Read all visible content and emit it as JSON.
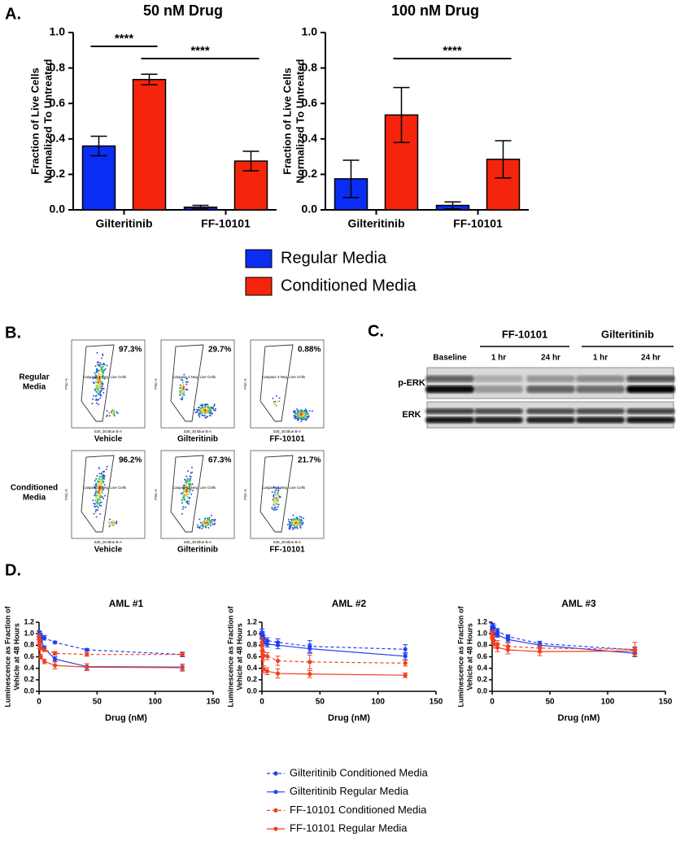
{
  "panel_labels": [
    "A.",
    "B.",
    "C.",
    "D."
  ],
  "chart_data": [
    {
      "type": "bar",
      "title": "50 nM Drug",
      "ylabel": [
        "Fraction of Live Cells",
        "Normalized To Untreated"
      ],
      "categories": [
        "Gilteritinib",
        "FF-10101"
      ],
      "series": [
        {
          "name": "Regular Media",
          "color": "#0b2cf2",
          "values": [
            0.36,
            0.015
          ],
          "errors": [
            0.055,
            0.01
          ]
        },
        {
          "name": "Conditioned Media",
          "color": "#f5240c",
          "values": [
            0.735,
            0.275
          ],
          "errors": [
            0.03,
            0.055
          ]
        }
      ],
      "ylim": [
        0,
        1
      ],
      "yticks": [
        {
          "value": 0,
          "label": "0.0"
        },
        0.2,
        0.4,
        0.6,
        0.8,
        {
          "value": 1,
          "label": "1.0"
        }
      ],
      "annotations": [
        "****",
        "****"
      ]
    },
    {
      "type": "bar",
      "title": "100 nM Drug",
      "ylabel": [
        "Fraction of Live Cells",
        "Normalized To Untreated"
      ],
      "categories": [
        "Gilteritinib",
        "FF-10101"
      ],
      "series": [
        {
          "color": "#0b2cf2",
          "values": [
            0.175,
            0.025
          ],
          "errors": [
            0.105,
            0.02
          ]
        },
        {
          "color": "#f5240c",
          "values": [
            0.535,
            0.285
          ],
          "errors": [
            0.155,
            0.105
          ]
        }
      ],
      "ylim": [
        0,
        1
      ],
      "yticks": [
        {
          "value": 0,
          "label": "0.0"
        },
        0.2,
        0.4,
        0.6,
        0.8,
        {
          "value": 1,
          "label": "1.0"
        }
      ],
      "annotations": [
        "****"
      ]
    },
    {
      "type": "line",
      "title": "AML #1",
      "xlabel": "Drug (nM)",
      "ylabel": [
        "Luminescence as Fraction of",
        "Vehicle at 48 Hours"
      ],
      "x": [
        0,
        0.5,
        1.5,
        4.6,
        13.7,
        41.2,
        123.5
      ],
      "series": [
        {
          "name": "Gilteritinib Conditioned Media",
          "color": "#1f3ff0",
          "dash": true,
          "values": [
            1.0,
            1.0,
            0.97,
            0.93,
            0.85,
            0.72,
            0.64
          ],
          "errors": [
            0.05,
            0.04,
            0.04,
            0.04,
            0.02,
            0.02,
            0.04
          ]
        },
        {
          "name": "Gilteritinib Regular Media",
          "color": "#1f3ff0",
          "dash": false,
          "values": [
            1.0,
            0.97,
            0.9,
            0.75,
            0.56,
            0.43,
            0.42
          ],
          "errors": [
            0.05,
            0.04,
            0.04,
            0.04,
            0.04,
            0.05,
            0.05
          ]
        },
        {
          "name": "FF-10101 Conditioned Media",
          "color": "#f0401f",
          "dash": true,
          "values": [
            0.95,
            0.85,
            0.75,
            0.72,
            0.66,
            0.64,
            0.64
          ],
          "errors": [
            0.05,
            0.04,
            0.03,
            0.03,
            0.03,
            0.03,
            0.03
          ]
        },
        {
          "name": "FF-10101 Regular Media",
          "color": "#f0401f",
          "dash": false,
          "values": [
            0.9,
            0.78,
            0.6,
            0.52,
            0.45,
            0.42,
            0.41
          ],
          "errors": [
            0.05,
            0.04,
            0.04,
            0.04,
            0.06,
            0.06,
            0.06
          ]
        }
      ],
      "xlim": [
        0,
        150
      ],
      "xticks": [
        0,
        50,
        100,
        150
      ],
      "ylim": [
        0,
        1.2
      ],
      "yticks": [
        {
          "value": 0,
          "label": "0.0"
        },
        0.2,
        0.4,
        0.6,
        0.8,
        {
          "value": 1,
          "label": "1.0"
        },
        1.2
      ]
    },
    {
      "type": "line",
      "title": "AML #2",
      "xlabel": "Drug (nM)",
      "ylabel": [
        "Luminescence as Fraction of",
        "Vehicle at 48 Hours"
      ],
      "x": [
        0,
        0.5,
        1.5,
        4.6,
        13.7,
        41.2,
        123.5
      ],
      "series": [
        {
          "color": "#1f3ff0",
          "dash": true,
          "values": [
            1.02,
            0.98,
            0.92,
            0.88,
            0.85,
            0.78,
            0.73
          ],
          "errors": [
            0.06,
            0.05,
            0.05,
            0.05,
            0.06,
            0.1,
            0.08
          ]
        },
        {
          "color": "#1f3ff0",
          "dash": false,
          "values": [
            0.98,
            0.95,
            0.85,
            0.82,
            0.8,
            0.74,
            0.61
          ],
          "errors": [
            0.06,
            0.05,
            0.05,
            0.05,
            0.06,
            0.08,
            0.06
          ]
        },
        {
          "color": "#f0401f",
          "dash": true,
          "values": [
            0.85,
            0.72,
            0.62,
            0.61,
            0.53,
            0.51,
            0.49
          ],
          "errors": [
            0.08,
            0.08,
            0.07,
            0.06,
            0.08,
            0.12,
            0.05
          ]
        },
        {
          "color": "#f0401f",
          "dash": false,
          "values": [
            0.8,
            0.6,
            0.38,
            0.35,
            0.31,
            0.3,
            0.28
          ],
          "errors": [
            0.1,
            0.08,
            0.06,
            0.06,
            0.08,
            0.06,
            0.04
          ]
        }
      ],
      "xlim": [
        0,
        150
      ],
      "xticks": [
        0,
        50,
        100,
        150
      ],
      "ylim": [
        0,
        1.2
      ],
      "yticks": [
        {
          "value": 0,
          "label": "0.0"
        },
        0.2,
        0.4,
        0.6,
        0.8,
        {
          "value": 1,
          "label": "1.0"
        },
        1.2
      ]
    },
    {
      "type": "line",
      "title": "AML #3",
      "xlabel": "Drug (nM)",
      "ylabel": [
        "Luminescence as Fraction of",
        "Vehicle at 48 Hours"
      ],
      "x": [
        0,
        0.5,
        1.5,
        4.6,
        13.7,
        41.2,
        123.5
      ],
      "series": [
        {
          "color": "#1f3ff0",
          "dash": true,
          "values": [
            1.12,
            1.13,
            1.1,
            1.05,
            0.95,
            0.83,
            0.72
          ],
          "errors": [
            0.05,
            0.05,
            0.05,
            0.04,
            0.03,
            0.04,
            0.05
          ]
        },
        {
          "color": "#1f3ff0",
          "dash": false,
          "values": [
            1.08,
            1.05,
            1.0,
            0.98,
            0.9,
            0.8,
            0.66
          ],
          "errors": [
            0.05,
            0.05,
            0.05,
            0.04,
            0.04,
            0.04,
            0.06
          ]
        },
        {
          "color": "#f0401f",
          "dash": true,
          "values": [
            1.0,
            0.95,
            0.88,
            0.82,
            0.78,
            0.75,
            0.73
          ],
          "errors": [
            0.06,
            0.06,
            0.07,
            0.06,
            0.06,
            0.06,
            0.12
          ]
        },
        {
          "color": "#f0401f",
          "dash": false,
          "values": [
            0.98,
            0.9,
            0.82,
            0.76,
            0.72,
            0.69,
            0.7
          ],
          "errors": [
            0.06,
            0.06,
            0.07,
            0.07,
            0.07,
            0.07,
            0.06
          ]
        }
      ],
      "xlim": [
        0,
        150
      ],
      "xticks": [
        0,
        50,
        100,
        150
      ],
      "ylim": [
        0,
        1.2
      ],
      "yticks": [
        {
          "value": 0,
          "label": "0.0"
        },
        0.2,
        0.4,
        0.6,
        0.8,
        {
          "value": 1,
          "label": "1.0"
        },
        1.2
      ]
    }
  ],
  "flow": {
    "rows": [
      [
        "Regular",
        "Media"
      ],
      [
        "Conditioned",
        "Media"
      ]
    ],
    "columns": [
      "Vehicle",
      "Gilteritinib",
      "FF-10101"
    ],
    "percentages": [
      [
        "97.3%",
        "29.7%",
        "0.88%"
      ],
      [
        "96.2%",
        "67.3%",
        "21.7%"
      ]
    ],
    "gate_label": "Caspase 3 Neg, Live Cells",
    "y_axis": "FSC-A",
    "x_axis": "530_30 Blue B-A"
  },
  "blot": {
    "groups": [
      "FF-10101",
      "Gilteritinib"
    ],
    "lanes": [
      "Baseline",
      "1 hr",
      "24 hr",
      "1 hr",
      "24 hr"
    ],
    "rows": [
      "p-ERK",
      "ERK"
    ]
  }
}
